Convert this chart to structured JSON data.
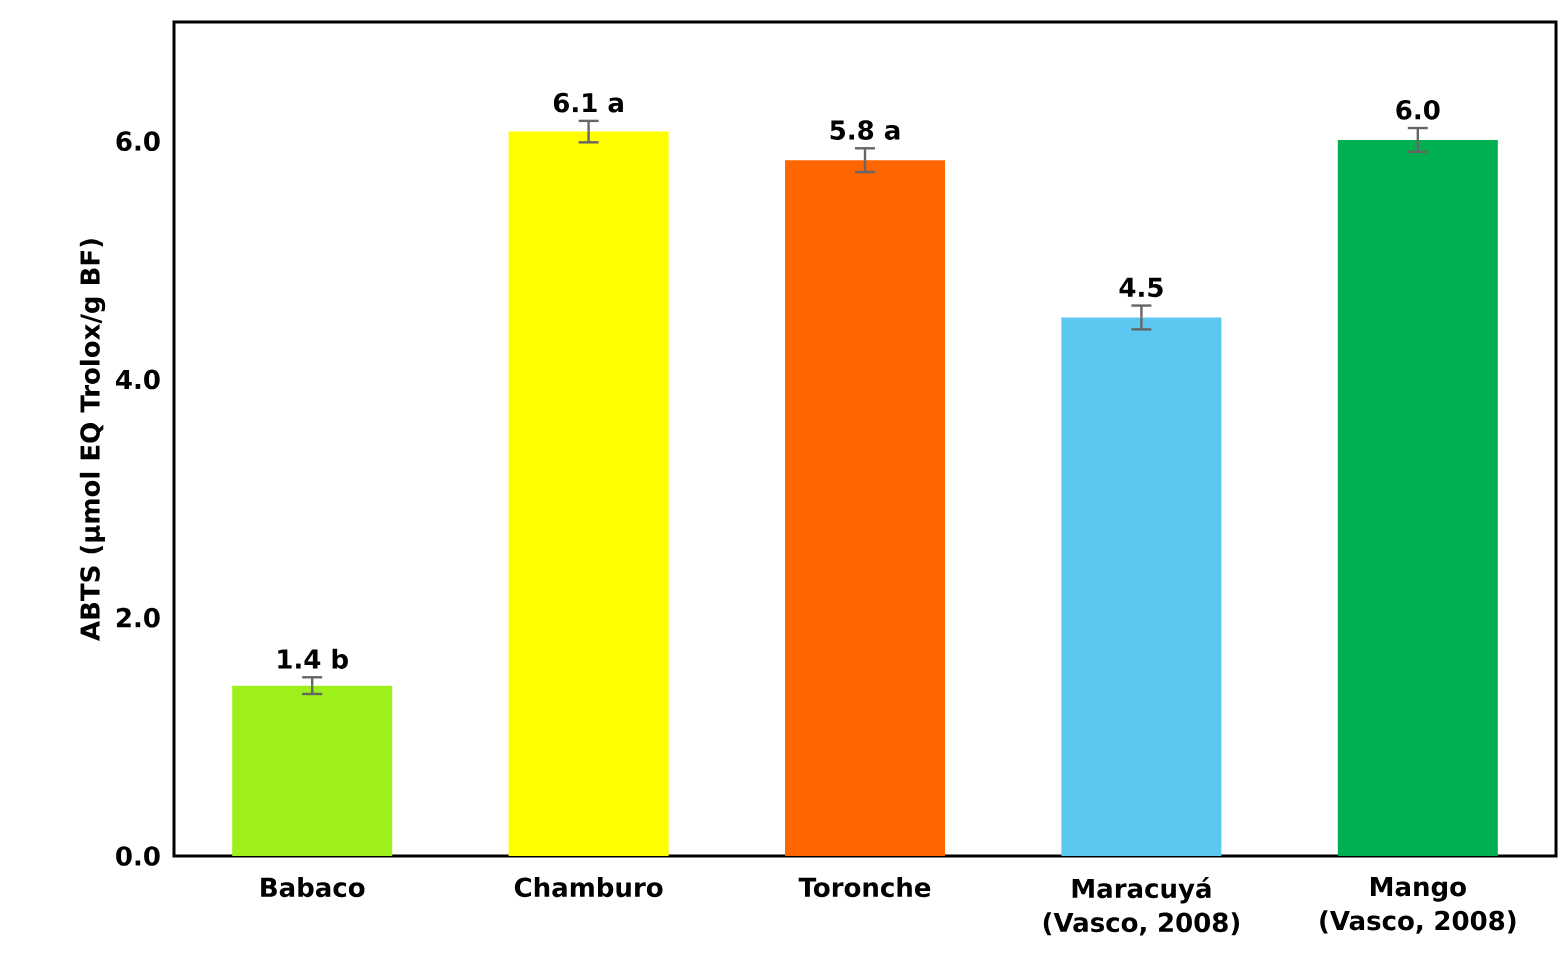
{
  "chart_data": {
    "type": "bar",
    "ylabel": "ABTS  (µmol EQ Trolox/g BF)",
    "categories": [
      "Babaco",
      "Chamburo",
      "Toronche",
      "Maracuyá (Vasco, 2008)",
      "Mango (Vasco, 2008)"
    ],
    "values": [
      1.43,
      6.08,
      5.84,
      4.52,
      6.01
    ],
    "errors": [
      0.07,
      0.09,
      0.1,
      0.1,
      0.1
    ],
    "value_labels": [
      "1.4 b",
      "6.1 a",
      "5.8 a",
      "4.5",
      "6.0"
    ],
    "colors": [
      "#9ef01a",
      "#ffff00",
      "#ff6600",
      "#5cc8f2",
      "#00b050"
    ],
    "ylim": [
      0,
      7
    ],
    "yticks": [
      {
        "value": 0,
        "label": "0.0"
      },
      {
        "value": 2,
        "label": "2.0"
      },
      {
        "value": 4,
        "label": "4.0"
      },
      {
        "value": 6,
        "label": "6.0"
      }
    ]
  }
}
